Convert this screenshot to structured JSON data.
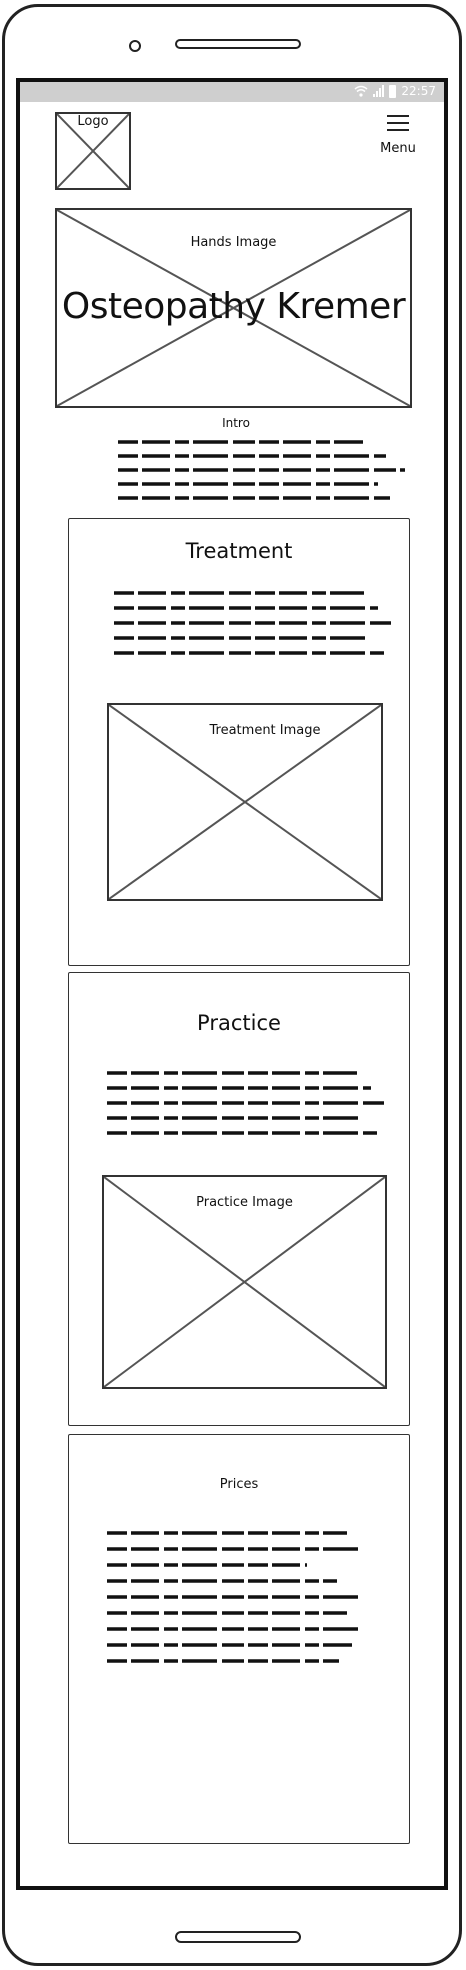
{
  "status_bar": {
    "time": "22:57"
  },
  "header": {
    "logo_label": "Logo",
    "menu_label": "Menu"
  },
  "hero": {
    "image_label": "Hands Image",
    "title": "Osteopathy Kremer"
  },
  "intro": {
    "label": "Intro"
  },
  "treatment": {
    "title": "Treatment",
    "image_label": "Treatment Image"
  },
  "practice": {
    "title": "Practice",
    "image_label": "Practice Image"
  },
  "prices": {
    "title": "Prices"
  },
  "icons": [
    "wifi-icon",
    "signal-icon",
    "battery-icon",
    "hamburger-icon",
    "image-placeholder-icon"
  ]
}
